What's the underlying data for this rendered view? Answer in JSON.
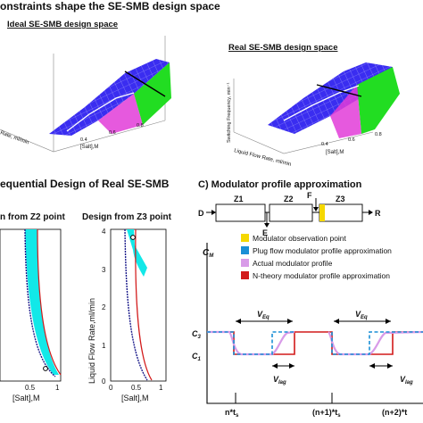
{
  "panel_a": {
    "title": "onstraints shape the SE-SMB design space",
    "ideal_title": "Ideal SE-SMB design space",
    "real_title": "Real SE-SMB design space",
    "ideal_x1": "Rate, ml/min",
    "ideal_x2": "[Salt],M",
    "ideal_x2_ticks": [
      "0.4",
      "0.6",
      "0.8"
    ],
    "real_ylabel": "Switching Frequency, min⁻¹",
    "real_x1": "Liquid Flow Rate, ml/min",
    "real_x2": "[Salt],M",
    "real_x2_ticks": [
      "0.4",
      "0.6",
      "0.8"
    ]
  },
  "panel_b": {
    "title": "equential Design of Real SE-SMB",
    "left_subtitle": "n from Z2 point",
    "right_subtitle": "Design from Z3 point",
    "left_xlabel": "[Salt],M",
    "left_xticks": [
      "0.5",
      "1"
    ],
    "right_ylabel": "Liquid Flow Rate,ml/min",
    "right_yticks": [
      "4",
      "3",
      "2",
      "1",
      "0"
    ],
    "right_xlabel": "[Salt],M",
    "right_xticks": [
      "0",
      "0.5",
      "1"
    ]
  },
  "panel_c": {
    "title": "C)  Modulator profile approximation",
    "zones": [
      "Z1",
      "Z2",
      "Z3"
    ],
    "port_d": "D",
    "port_e": "E",
    "port_f": "F",
    "port_r": "R",
    "y_axis": "C",
    "y_axis_sub": "M",
    "c3": "C",
    "c3_sub": "3",
    "c1": "C",
    "c1_sub": "1",
    "legend": [
      {
        "label": "Modulator observation point",
        "color": "#f5d800"
      },
      {
        "label": "Plug flow modulator profile approximation",
        "color": "#1a8fd6"
      },
      {
        "label": "Actual modulator profile",
        "color": "#d89be8"
      },
      {
        "label": "N-theory modulator profile approximation",
        "color": "#d21a1a"
      }
    ],
    "veq": "V",
    "veq_sub": "Eq",
    "vlag": "V",
    "vlag_sub": "lag",
    "x_tick_1": "n*t",
    "x_tick_1_sub": "s",
    "x_tick_2": "(n+1)*t",
    "x_tick_2_sub": "s",
    "x_tick_3": "(n+2)*t",
    "x_tick_3_sub": ""
  },
  "colors": {
    "surface_blue": "#3a2df0",
    "surface_green": "#22dd22",
    "surface_magenta": "#e23cd8",
    "region_cyan": "#12e8e8",
    "boundary_red": "#d21a1a",
    "boundary_navy": "#1a1a8a"
  }
}
